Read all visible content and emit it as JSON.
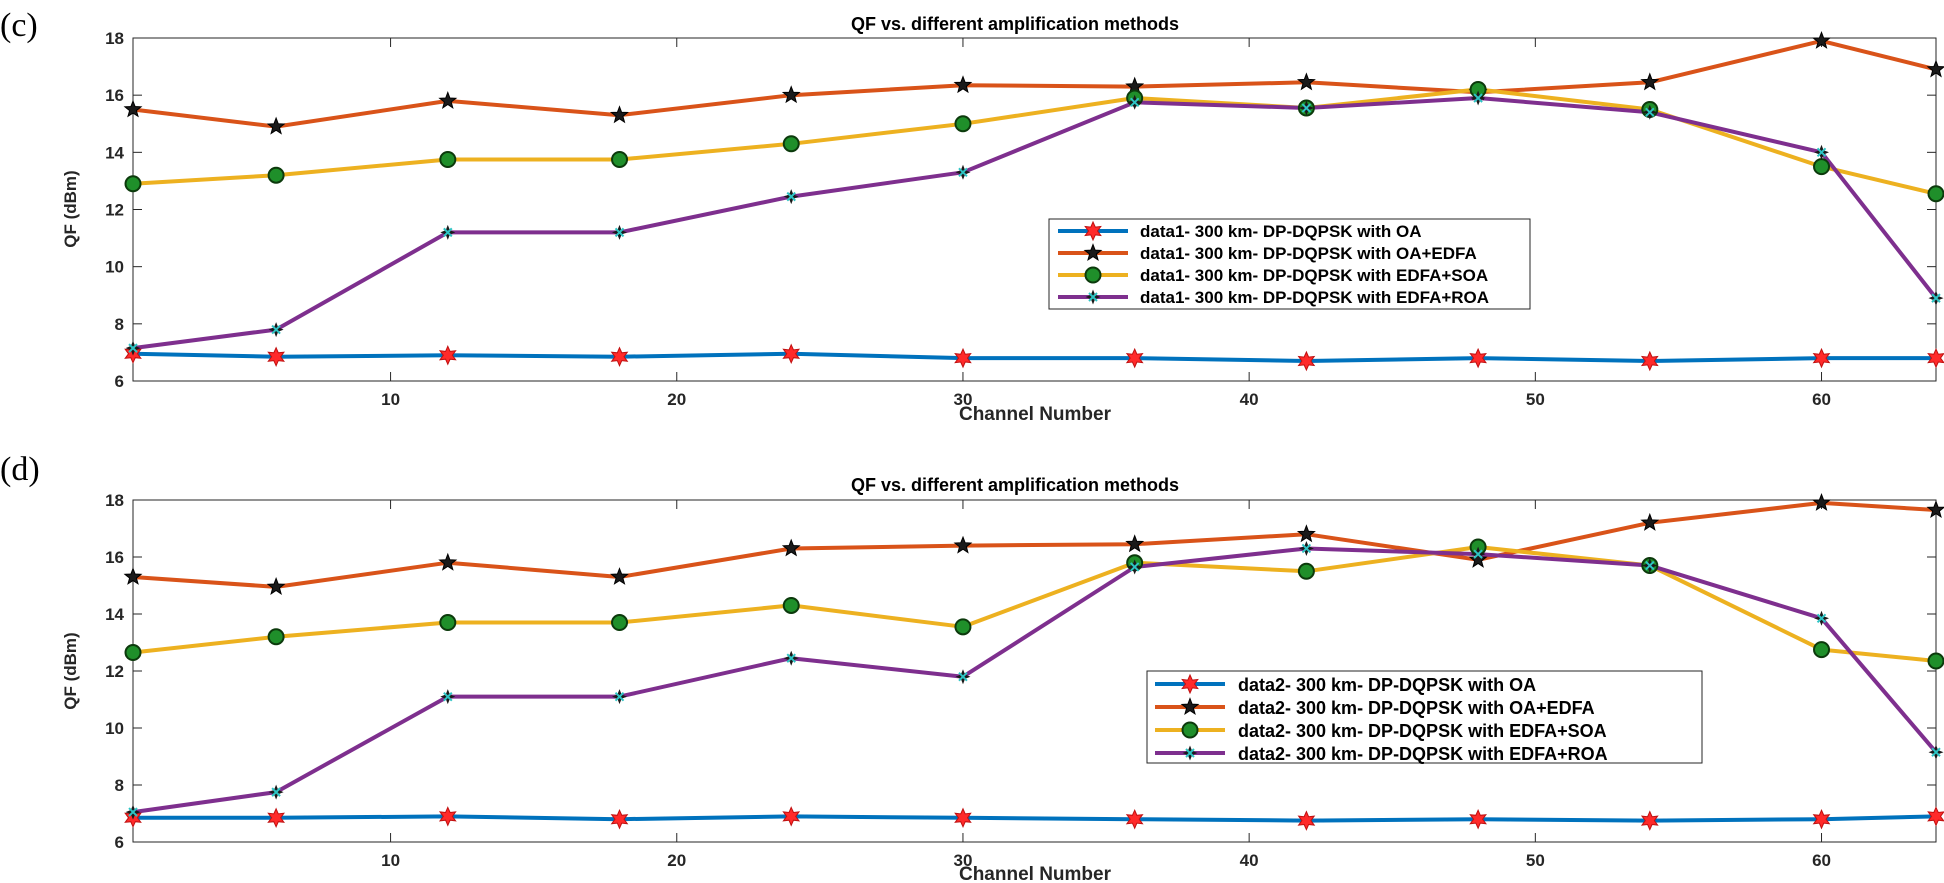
{
  "colors": {
    "series": [
      "#0072BD",
      "#D95319",
      "#EDB120",
      "#7E2F8E"
    ],
    "marker_star": "#ff2a2a",
    "marker_pentagram": "#1a1a1a",
    "marker_circle": "#1f8f2a",
    "marker_x": "#2ec4c4"
  },
  "chart_data": [
    {
      "type": "line",
      "panel_label": "(c)",
      "title": "QF vs. different amplification methods",
      "xlabel": "Channel Number",
      "ylabel": "QF (dBm)",
      "xlim": [
        1,
        64
      ],
      "ylim": [
        6,
        18
      ],
      "xticks": [
        10,
        20,
        30,
        40,
        50,
        60
      ],
      "yticks": [
        6,
        8,
        10,
        12,
        14,
        16,
        18
      ],
      "legend_position": "center-right",
      "x": [
        1,
        6,
        12,
        18,
        24,
        30,
        36,
        42,
        48,
        54,
        60,
        64
      ],
      "series": [
        {
          "name": "data1- 300 km- DP-DQPSK with OA",
          "marker": "star6",
          "values": [
            6.95,
            6.85,
            6.9,
            6.85,
            6.95,
            6.8,
            6.8,
            6.7,
            6.8,
            6.7,
            6.8,
            6.8
          ]
        },
        {
          "name": "data1- 300 km- DP-DQPSK with OA+EDFA",
          "marker": "pentagram",
          "values": [
            15.5,
            14.9,
            15.8,
            15.3,
            16.0,
            16.35,
            16.3,
            16.45,
            16.1,
            16.45,
            17.9,
            16.9
          ]
        },
        {
          "name": "data1- 300 km- DP-DQPSK with EDFA+SOA",
          "marker": "circle",
          "values": [
            12.9,
            13.2,
            13.75,
            13.75,
            14.3,
            15.0,
            15.9,
            15.55,
            16.2,
            15.5,
            13.5,
            12.55
          ]
        },
        {
          "name": "data1- 300 km- DP-DQPSK with EDFA+ROA",
          "marker": "x",
          "values": [
            7.15,
            7.8,
            11.2,
            11.2,
            12.45,
            13.3,
            15.75,
            15.55,
            15.9,
            15.4,
            14.0,
            8.9
          ]
        }
      ]
    },
    {
      "type": "line",
      "panel_label": "(d)",
      "title": "QF vs. different amplification methods",
      "xlabel": "Channel Number",
      "ylabel": "QF (dBm)",
      "xlim": [
        1,
        64
      ],
      "ylim": [
        6,
        18
      ],
      "xticks": [
        10,
        20,
        30,
        40,
        50,
        60
      ],
      "yticks": [
        6,
        8,
        10,
        12,
        14,
        16,
        18
      ],
      "legend_position": "lower-right",
      "x": [
        1,
        6,
        12,
        18,
        24,
        30,
        36,
        42,
        48,
        54,
        60,
        64
      ],
      "series": [
        {
          "name": "data2- 300 km- DP-DQPSK with OA",
          "marker": "star6",
          "values": [
            6.85,
            6.85,
            6.9,
            6.8,
            6.9,
            6.85,
            6.8,
            6.75,
            6.8,
            6.75,
            6.8,
            6.9
          ]
        },
        {
          "name": "data2- 300 km- DP-DQPSK with OA+EDFA",
          "marker": "pentagram",
          "values": [
            15.3,
            14.95,
            15.8,
            15.3,
            16.3,
            16.4,
            16.45,
            16.8,
            15.9,
            17.2,
            17.9,
            17.65
          ]
        },
        {
          "name": "data2- 300 km- DP-DQPSK with EDFA+SOA",
          "marker": "circle",
          "values": [
            12.65,
            13.2,
            13.7,
            13.7,
            14.3,
            13.55,
            15.8,
            15.5,
            16.35,
            15.7,
            12.75,
            12.35
          ]
        },
        {
          "name": "data2- 300 km- DP-DQPSK with EDFA+ROA",
          "marker": "x",
          "values": [
            7.05,
            7.75,
            11.1,
            11.1,
            12.45,
            11.8,
            15.65,
            16.3,
            16.1,
            15.7,
            13.85,
            9.15
          ]
        }
      ]
    }
  ]
}
